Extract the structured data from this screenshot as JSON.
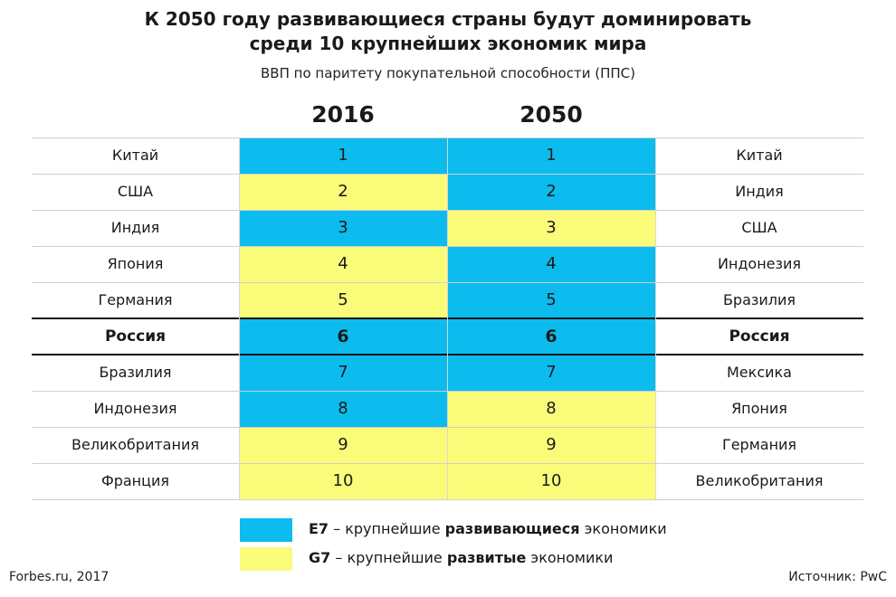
{
  "title_line1": "К 2050 году развивающиеся страны будут доминировать",
  "title_line2": "среди 10 крупнейших экономик мира",
  "subtitle": "ВВП по паритету покупательной способности (ППС)",
  "colors": {
    "E7": "#0dbcee",
    "G7": "#fbfb7a"
  },
  "chart_data": {
    "type": "table",
    "columns": [
      "2016",
      "2050"
    ],
    "highlight_country": "Россия",
    "rows": [
      {
        "rank": "1",
        "country_2016": "Китай",
        "group_2016": "E7",
        "country_2050": "Китай",
        "group_2050": "E7"
      },
      {
        "rank": "2",
        "country_2016": "США",
        "group_2016": "G7",
        "country_2050": "Индия",
        "group_2050": "E7"
      },
      {
        "rank": "3",
        "country_2016": "Индия",
        "group_2016": "E7",
        "country_2050": "США",
        "group_2050": "G7"
      },
      {
        "rank": "4",
        "country_2016": "Япония",
        "group_2016": "G7",
        "country_2050": "Индонезия",
        "group_2050": "E7"
      },
      {
        "rank": "5",
        "country_2016": "Германия",
        "group_2016": "G7",
        "country_2050": "Бразилия",
        "group_2050": "E7"
      },
      {
        "rank": "6",
        "country_2016": "Россия",
        "group_2016": "E7",
        "country_2050": "Россия",
        "group_2050": "E7"
      },
      {
        "rank": "7",
        "country_2016": "Бразилия",
        "group_2016": "E7",
        "country_2050": "Мексика",
        "group_2050": "E7"
      },
      {
        "rank": "8",
        "country_2016": "Индонезия",
        "group_2016": "E7",
        "country_2050": "Япония",
        "group_2050": "G7"
      },
      {
        "rank": "9",
        "country_2016": "Великобритания",
        "group_2016": "G7",
        "country_2050": "Германия",
        "group_2050": "G7"
      },
      {
        "rank": "10",
        "country_2016": "Франция",
        "group_2016": "G7",
        "country_2050": "Великобритания",
        "group_2050": "G7"
      }
    ]
  },
  "legend": [
    {
      "key": "E7",
      "code": "E7",
      "pre": " – крупнейшие ",
      "strong": "развивающиеся",
      "post": " экономики"
    },
    {
      "key": "G7",
      "code": "G7",
      "pre": " – крупнейшие ",
      "strong": "развитые",
      "post": " экономики"
    }
  ],
  "footer_left": "Forbes.ru, 2017",
  "footer_right": "Источник: PwC"
}
